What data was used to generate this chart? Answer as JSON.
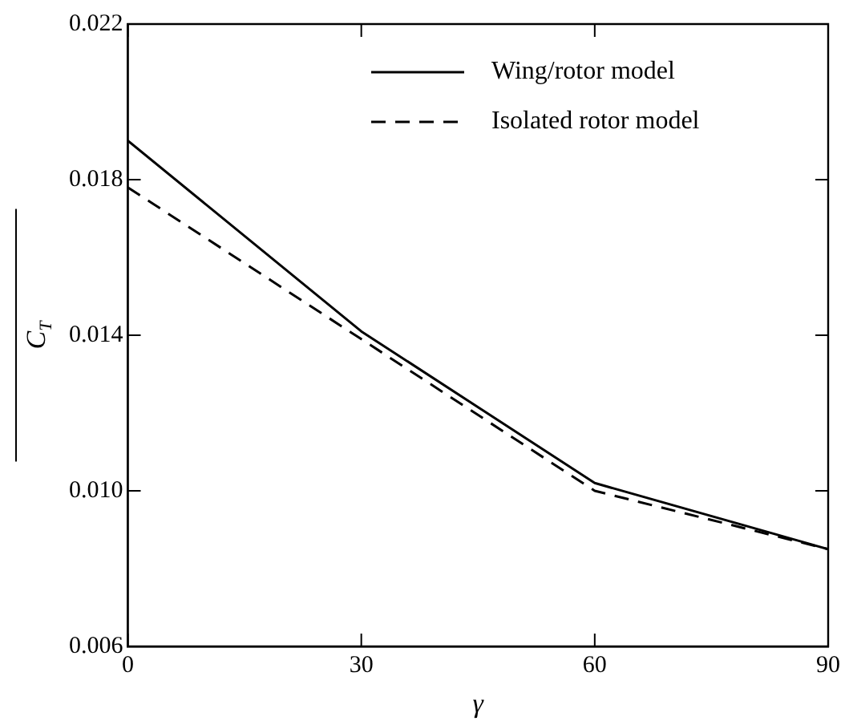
{
  "chart_data": {
    "type": "line",
    "xlabel": "γ",
    "ylabel": "C$_{T}$",
    "x": [
      0,
      30,
      60,
      90
    ],
    "series": [
      {
        "name": "Wing/rotor model",
        "color": "#000000",
        "line_style": "solid",
        "values": [
          0.019,
          0.0141,
          0.0102,
          0.0085
        ]
      },
      {
        "name": "Isolated rotor model",
        "color": "#000000",
        "line_style": "dashed",
        "values": [
          0.0178,
          0.0139,
          0.01,
          0.0085
        ]
      }
    ],
    "xlim": [
      0,
      90
    ],
    "xticks": [
      0,
      30,
      60,
      90
    ],
    "ylim": [
      0.006,
      0.022
    ],
    "yticks": [
      0.006,
      {
        "value": 0.01,
        "label": "0.010"
      },
      0.014,
      0.018,
      0.022
    ],
    "grid": false,
    "legend": "top right",
    "marker": "none"
  }
}
